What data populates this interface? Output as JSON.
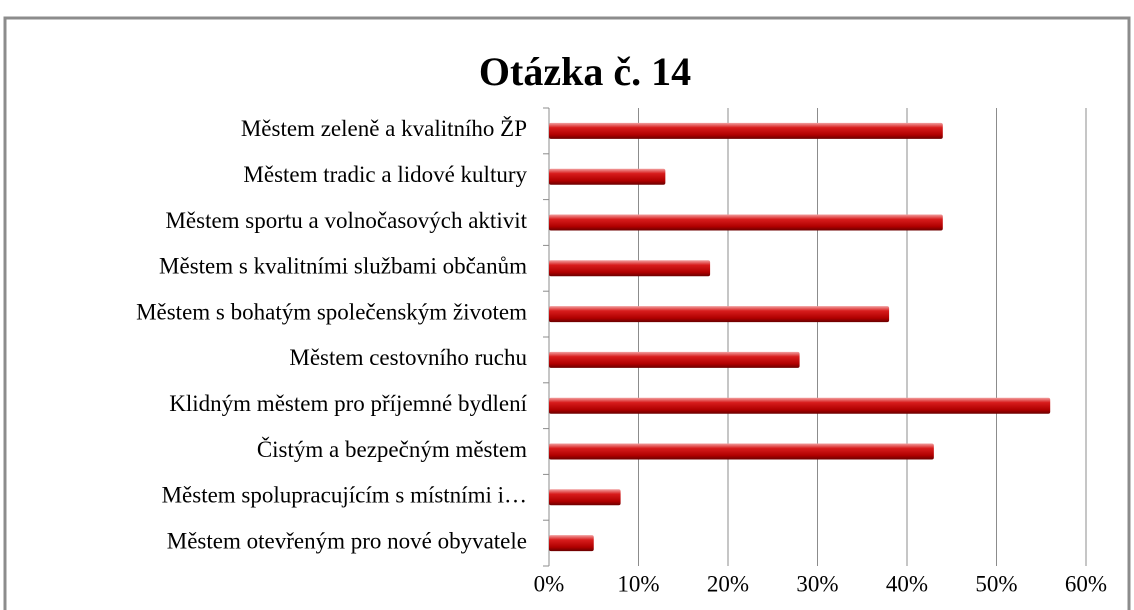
{
  "chart_data": {
    "type": "bar",
    "orientation": "horizontal",
    "title": "Otázka č. 14",
    "categories": [
      "Městem zeleně a kvalitního ŽP",
      "Městem tradic a lidové kultury",
      "Městem sportu a volnočasových aktivit",
      "Městem s kvalitními službami občanům",
      "Městem s bohatým společenským životem",
      "Městem cestovního ruchu",
      "Klidným městem pro příjemné bydlení",
      "Čistým a bezpečným městem",
      "Městem spolupracujícím s místními i…",
      "Městem otevřeným pro nové obyvatele"
    ],
    "values": [
      44,
      13,
      44,
      18,
      38,
      28,
      56,
      43,
      8,
      5
    ],
    "color": "#c00000",
    "xlim": [
      0,
      60
    ],
    "xticks": [
      {
        "value": 0,
        "label": "0%"
      },
      {
        "value": 10,
        "label": "10%"
      },
      {
        "value": 20,
        "label": "20%"
      },
      {
        "value": 30,
        "label": "30%"
      },
      {
        "value": 40,
        "label": "40%"
      },
      {
        "value": 50,
        "label": "50%"
      },
      {
        "value": 60,
        "label": "60%"
      }
    ],
    "grid": true
  }
}
